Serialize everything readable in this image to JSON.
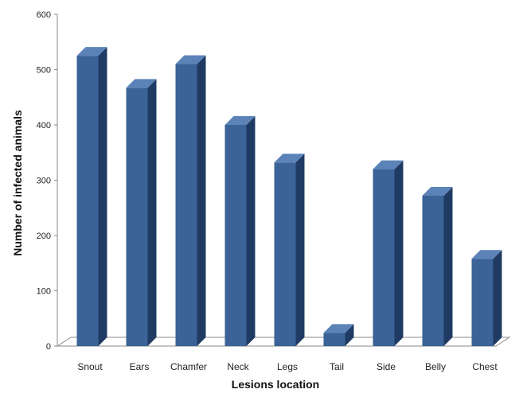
{
  "chart_data": {
    "type": "bar",
    "categories": [
      "Snout",
      "Ears",
      "Chamfer",
      "Neck",
      "Legs",
      "Tail",
      "Side",
      "Belly",
      "Chest"
    ],
    "values": [
      525,
      467,
      510,
      400,
      332,
      24,
      320,
      272,
      158
    ],
    "title": "",
    "xlabel": "Lesions location",
    "ylabel": "Number of infected animals",
    "ylim": [
      0,
      600
    ],
    "yticks": [
      0,
      100,
      200,
      300,
      400,
      500,
      600
    ],
    "grid": false,
    "legend": "none",
    "style": "3d-column"
  },
  "colors": {
    "bar_front": "#3b6397",
    "bar_side": "#1f3b63",
    "bar_top": "#5c83b8",
    "floor": "#ffffff",
    "axis": "#8a8a8a"
  }
}
